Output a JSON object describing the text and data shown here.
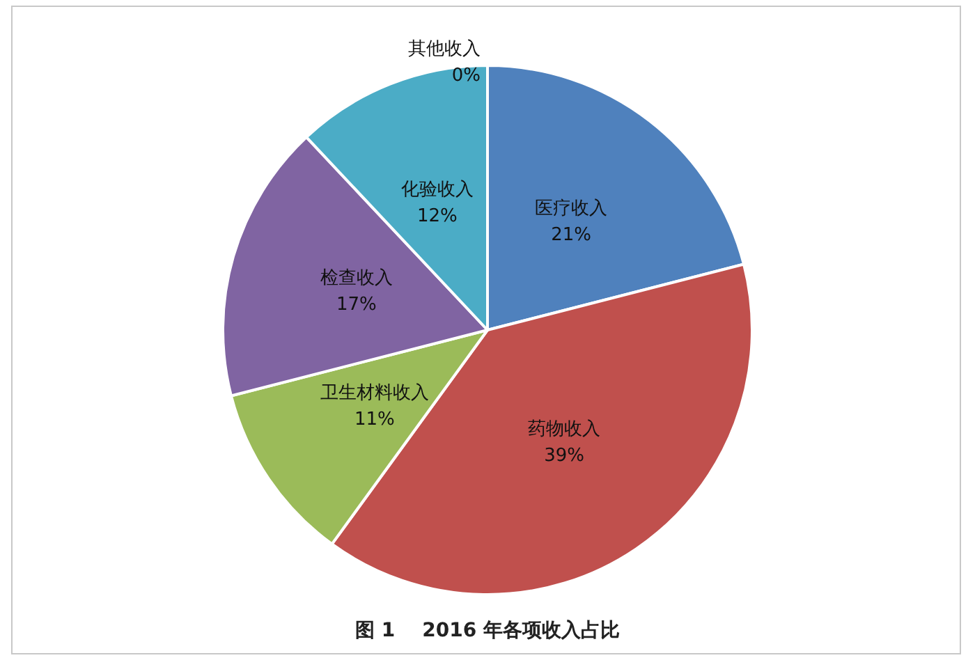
{
  "chart_data": {
    "type": "pie",
    "title": "图 1    2016 年各项收入占比",
    "categories": [
      "医疗收入",
      "药物收入",
      "卫生材料收入",
      "检查收入",
      "化验收入",
      "其他收入"
    ],
    "values": [
      21,
      39,
      11,
      17,
      12,
      0
    ],
    "value_labels": [
      "21%",
      "39%",
      "11%",
      "17%",
      "12%",
      "0%"
    ],
    "colors": [
      "#4f81bd",
      "#c0504d",
      "#9bbb59",
      "#8064a2",
      "#4bacc6",
      "#f79646"
    ]
  }
}
